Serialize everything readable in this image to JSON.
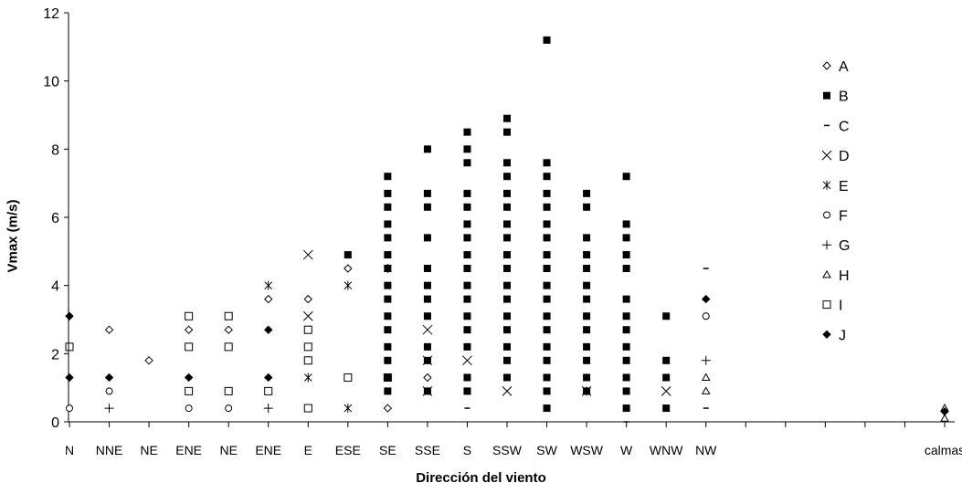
{
  "chart_data": {
    "type": "scatter",
    "xlabel": "Dirección del viento",
    "ylabel": "Vmax (m/s)",
    "ylim": [
      0,
      12
    ],
    "yticks": [
      "0",
      "2",
      "4",
      "6",
      "8",
      "10",
      "12"
    ],
    "grid": false,
    "legend_position": "right",
    "categories": [
      "N",
      "NNE",
      "NE",
      "ENE",
      "NE",
      "ENE",
      "E",
      "ESE",
      "SE",
      "SSE",
      "S",
      "SSW",
      "SW",
      "WSW",
      "W",
      "WNW",
      "NW",
      "",
      "",
      "",
      "",
      "",
      "calmas"
    ],
    "series": [
      {
        "name": "A",
        "marker": "diamond-open",
        "points": [
          [
            1,
            2.7
          ],
          [
            2,
            1.8
          ],
          [
            3,
            2.7
          ],
          [
            4,
            2.7
          ],
          [
            5,
            3.6
          ],
          [
            6,
            3.6
          ],
          [
            7,
            4.5
          ],
          [
            8,
            0.4
          ],
          [
            9,
            1.3
          ]
        ]
      },
      {
        "name": "B",
        "marker": "square-filled",
        "points": [
          [
            7,
            4.9
          ],
          [
            8,
            7.2
          ],
          [
            8,
            6.7
          ],
          [
            8,
            6.3
          ],
          [
            8,
            5.8
          ],
          [
            8,
            5.4
          ],
          [
            8,
            4.9
          ],
          [
            8,
            4.5
          ],
          [
            8,
            4.0
          ],
          [
            8,
            3.6
          ],
          [
            8,
            3.1
          ],
          [
            8,
            2.7
          ],
          [
            8,
            2.2
          ],
          [
            8,
            1.8
          ],
          [
            8,
            1.3
          ],
          [
            8,
            0.9
          ],
          [
            9,
            8.0
          ],
          [
            9,
            6.7
          ],
          [
            9,
            6.3
          ],
          [
            9,
            5.4
          ],
          [
            9,
            4.5
          ],
          [
            9,
            4.0
          ],
          [
            9,
            3.6
          ],
          [
            9,
            3.1
          ],
          [
            9,
            2.2
          ],
          [
            9,
            1.8
          ],
          [
            9,
            0.9
          ],
          [
            10,
            8.5
          ],
          [
            10,
            8.0
          ],
          [
            10,
            7.6
          ],
          [
            10,
            6.7
          ],
          [
            10,
            6.3
          ],
          [
            10,
            5.8
          ],
          [
            10,
            5.4
          ],
          [
            10,
            4.9
          ],
          [
            10,
            4.5
          ],
          [
            10,
            4.0
          ],
          [
            10,
            3.6
          ],
          [
            10,
            3.1
          ],
          [
            10,
            2.7
          ],
          [
            10,
            2.2
          ],
          [
            10,
            1.3
          ],
          [
            10,
            0.9
          ],
          [
            11,
            8.9
          ],
          [
            11,
            8.5
          ],
          [
            11,
            7.6
          ],
          [
            11,
            7.2
          ],
          [
            11,
            6.7
          ],
          [
            11,
            6.3
          ],
          [
            11,
            5.8
          ],
          [
            11,
            5.4
          ],
          [
            11,
            4.9
          ],
          [
            11,
            4.5
          ],
          [
            11,
            4.0
          ],
          [
            11,
            3.6
          ],
          [
            11,
            3.1
          ],
          [
            11,
            2.7
          ],
          [
            11,
            2.2
          ],
          [
            11,
            1.8
          ],
          [
            11,
            1.3
          ],
          [
            12,
            11.2
          ],
          [
            12,
            7.6
          ],
          [
            12,
            7.2
          ],
          [
            12,
            6.7
          ],
          [
            12,
            6.3
          ],
          [
            12,
            5.8
          ],
          [
            12,
            5.4
          ],
          [
            12,
            4.9
          ],
          [
            12,
            4.5
          ],
          [
            12,
            4.0
          ],
          [
            12,
            3.6
          ],
          [
            12,
            3.1
          ],
          [
            12,
            2.7
          ],
          [
            12,
            2.2
          ],
          [
            12,
            1.8
          ],
          [
            12,
            1.3
          ],
          [
            12,
            0.9
          ],
          [
            12,
            0.4
          ],
          [
            13,
            6.7
          ],
          [
            13,
            6.3
          ],
          [
            13,
            5.4
          ],
          [
            13,
            4.9
          ],
          [
            13,
            4.5
          ],
          [
            13,
            4.0
          ],
          [
            13,
            3.6
          ],
          [
            13,
            3.1
          ],
          [
            13,
            2.7
          ],
          [
            13,
            2.2
          ],
          [
            13,
            1.8
          ],
          [
            13,
            1.3
          ],
          [
            13,
            0.9
          ],
          [
            14,
            7.2
          ],
          [
            14,
            5.8
          ],
          [
            14,
            5.4
          ],
          [
            14,
            4.9
          ],
          [
            14,
            4.5
          ],
          [
            14,
            3.6
          ],
          [
            14,
            3.1
          ],
          [
            14,
            2.7
          ],
          [
            14,
            2.2
          ],
          [
            14,
            1.8
          ],
          [
            14,
            1.3
          ],
          [
            14,
            0.9
          ],
          [
            14,
            0.4
          ],
          [
            15,
            3.1
          ],
          [
            15,
            1.8
          ],
          [
            15,
            1.3
          ],
          [
            15,
            0.4
          ]
        ]
      },
      {
        "name": "C",
        "marker": "dash",
        "points": [
          [
            10,
            0.4
          ],
          [
            14,
            0.0
          ],
          [
            16,
            4.5
          ],
          [
            16,
            0.4
          ]
        ]
      },
      {
        "name": "D",
        "marker": "x",
        "points": [
          [
            6,
            4.9
          ],
          [
            6,
            3.1
          ],
          [
            9,
            2.7
          ],
          [
            9,
            1.8
          ],
          [
            9,
            0.9
          ],
          [
            10,
            1.8
          ],
          [
            11,
            0.9
          ],
          [
            13,
            0.9
          ],
          [
            15,
            0.9
          ]
        ]
      },
      {
        "name": "E",
        "marker": "star",
        "points": [
          [
            5,
            4.0
          ],
          [
            7,
            4.0
          ],
          [
            8,
            4.5
          ],
          [
            6,
            1.3
          ],
          [
            7,
            0.4
          ],
          [
            13,
            0.9
          ]
        ]
      },
      {
        "name": "F",
        "marker": "circle-open",
        "points": [
          [
            0,
            0.4
          ],
          [
            1,
            0.9
          ],
          [
            3,
            0.4
          ],
          [
            4,
            0.4
          ],
          [
            16,
            3.1
          ]
        ]
      },
      {
        "name": "G",
        "marker": "plus",
        "points": [
          [
            1,
            0.4
          ],
          [
            5,
            0.4
          ],
          [
            16,
            1.8
          ]
        ]
      },
      {
        "name": "H",
        "marker": "triangle-open",
        "points": [
          [
            16,
            1.3
          ],
          [
            16,
            0.9
          ],
          [
            22,
            0.4
          ],
          [
            22,
            0.1
          ]
        ]
      },
      {
        "name": "I",
        "marker": "square-open",
        "points": [
          [
            0,
            2.2
          ],
          [
            3,
            3.1
          ],
          [
            4,
            3.1
          ],
          [
            6,
            2.7
          ],
          [
            6,
            2.2
          ],
          [
            5,
            0.9
          ],
          [
            3,
            0.9
          ],
          [
            4,
            2.2
          ],
          [
            3,
            2.2
          ],
          [
            6,
            1.8
          ],
          [
            8,
            1.3
          ],
          [
            7,
            1.3
          ],
          [
            6,
            0.4
          ],
          [
            4,
            0.9
          ]
        ]
      },
      {
        "name": "J",
        "marker": "diamond-filled",
        "points": [
          [
            0,
            3.1
          ],
          [
            0,
            1.3
          ],
          [
            1,
            1.3
          ],
          [
            3,
            1.3
          ],
          [
            5,
            2.7
          ],
          [
            5,
            1.3
          ],
          [
            16,
            3.6
          ],
          [
            22,
            0.3
          ]
        ]
      }
    ]
  }
}
